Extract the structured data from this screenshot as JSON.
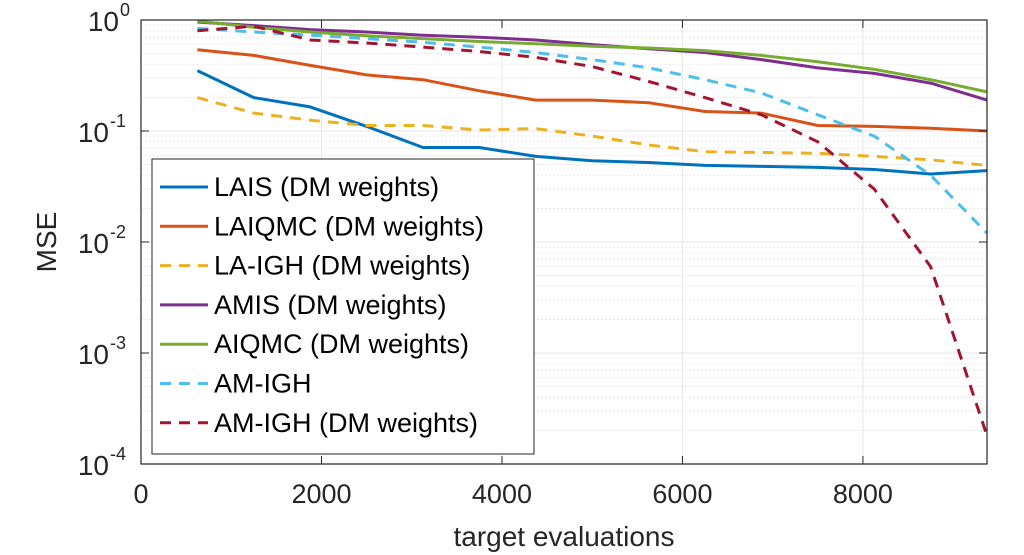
{
  "chart_data": {
    "type": "line",
    "xlabel": "target evaluations",
    "ylabel": "MSE",
    "xlim": [
      0,
      9375
    ],
    "ylim": [
      0.0001,
      1
    ],
    "yscale": "log",
    "grid": true,
    "legend_position": "bottom-left",
    "x_ticks": [
      {
        "value": 0,
        "label": "0"
      },
      {
        "value": 2000,
        "label": "2000"
      },
      {
        "value": 4000,
        "label": "4000"
      },
      {
        "value": 6000,
        "label": "6000"
      },
      {
        "value": 8000,
        "label": "8000"
      }
    ],
    "y_ticks": [
      {
        "value": 1,
        "base": "10",
        "exp": "0"
      },
      {
        "value": 0.1,
        "base": "10",
        "exp": "-1"
      },
      {
        "value": 0.01,
        "base": "10",
        "exp": "-2"
      },
      {
        "value": 0.001,
        "base": "10",
        "exp": "-3"
      },
      {
        "value": 0.0001,
        "base": "10",
        "exp": "-4"
      }
    ],
    "series": [
      {
        "name": "LAIS (DM weights)",
        "color": "#0072bd",
        "dash": "solid",
        "x": [
          625,
          1250,
          1875,
          2500,
          3125,
          3750,
          4375,
          5000,
          5625,
          6250,
          6875,
          7500,
          8125,
          8750,
          9375
        ],
        "y": [
          0.35,
          0.2,
          0.165,
          0.11,
          0.071,
          0.071,
          0.059,
          0.054,
          0.052,
          0.049,
          0.048,
          0.047,
          0.045,
          0.041,
          0.044
        ]
      },
      {
        "name": "LAIQMC (DM weights)",
        "color": "#d95319",
        "dash": "solid",
        "x": [
          625,
          1250,
          1875,
          2500,
          3125,
          3750,
          4375,
          5000,
          5625,
          6250,
          6875,
          7500,
          8125,
          8750,
          9375
        ],
        "y": [
          0.54,
          0.48,
          0.39,
          0.32,
          0.29,
          0.23,
          0.19,
          0.19,
          0.18,
          0.15,
          0.145,
          0.112,
          0.11,
          0.106,
          0.1
        ]
      },
      {
        "name": "LA-IGH (DM weights)",
        "color": "#edb120",
        "dash": "dashed",
        "x": [
          625,
          1250,
          1875,
          2500,
          3125,
          3750,
          4375,
          5000,
          5625,
          6250,
          6875,
          7500,
          8125,
          8750,
          9375
        ],
        "y": [
          0.2,
          0.145,
          0.125,
          0.112,
          0.112,
          0.102,
          0.105,
          0.09,
          0.075,
          0.065,
          0.064,
          0.063,
          0.059,
          0.055,
          0.049
        ]
      },
      {
        "name": "AMIS (DM weights)",
        "color": "#7e2f8e",
        "dash": "solid",
        "x": [
          625,
          1250,
          1875,
          2500,
          3125,
          3750,
          4375,
          5000,
          5625,
          6250,
          6875,
          7500,
          8125,
          8750,
          9375
        ],
        "y": [
          0.96,
          0.89,
          0.82,
          0.78,
          0.73,
          0.7,
          0.66,
          0.6,
          0.55,
          0.51,
          0.44,
          0.37,
          0.33,
          0.27,
          0.19
        ]
      },
      {
        "name": "AIQMC (DM weights)",
        "color": "#77ac30",
        "dash": "solid",
        "x": [
          625,
          1250,
          1875,
          2500,
          3125,
          3750,
          4375,
          5000,
          5625,
          6250,
          6875,
          7500,
          8125,
          8750,
          9375
        ],
        "y": [
          0.98,
          0.86,
          0.78,
          0.72,
          0.68,
          0.64,
          0.61,
          0.58,
          0.56,
          0.53,
          0.48,
          0.42,
          0.36,
          0.29,
          0.225
        ]
      },
      {
        "name": "AM-IGH",
        "color": "#4dbeee",
        "dash": "dashed",
        "x": [
          625,
          1250,
          1875,
          2500,
          3125,
          3750,
          4375,
          5000,
          5625,
          6250,
          6875,
          7500,
          8125,
          8750,
          9375
        ],
        "y": [
          0.84,
          0.78,
          0.73,
          0.68,
          0.63,
          0.57,
          0.51,
          0.44,
          0.37,
          0.29,
          0.22,
          0.14,
          0.09,
          0.04,
          0.012
        ]
      },
      {
        "name": "AM-IGH (DM weights)",
        "color": "#a2142f",
        "dash": "dashed",
        "x": [
          625,
          1250,
          1875,
          2500,
          3125,
          3750,
          4375,
          5000,
          5625,
          6250,
          6875,
          7500,
          8125,
          8750,
          9375
        ],
        "y": [
          0.8,
          0.88,
          0.66,
          0.62,
          0.57,
          0.52,
          0.46,
          0.38,
          0.28,
          0.2,
          0.14,
          0.08,
          0.03,
          0.006,
          0.00018
        ]
      }
    ]
  }
}
